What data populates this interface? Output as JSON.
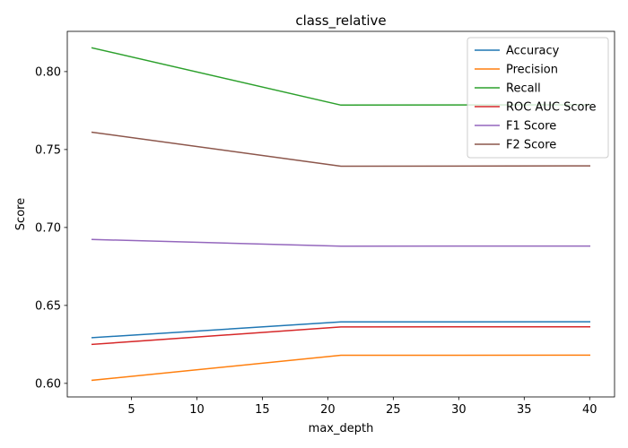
{
  "chart_data": {
    "type": "line",
    "title": "class_relative",
    "xlabel": "max_depth",
    "ylabel": "Score",
    "xlim": [
      0.1,
      41.9
    ],
    "ylim": [
      0.5913,
      0.8258
    ],
    "xticks": [
      5,
      10,
      15,
      20,
      25,
      30,
      35,
      40
    ],
    "yticks": [
      0.6,
      0.65,
      0.7,
      0.75,
      0.8
    ],
    "ytick_format": "0.00",
    "x": [
      2,
      21,
      40
    ],
    "grid": false,
    "legend_position": "top-right",
    "series": [
      {
        "name": "Accuracy",
        "color": "#1f77b4",
        "values": [
          0.6293,
          0.6394,
          0.6395
        ]
      },
      {
        "name": "Precision",
        "color": "#ff7f0e",
        "values": [
          0.602,
          0.618,
          0.6181
        ]
      },
      {
        "name": "Recall",
        "color": "#2ca02c",
        "values": [
          0.8152,
          0.7785,
          0.7787
        ]
      },
      {
        "name": "ROC AUC Score",
        "color": "#d62728",
        "values": [
          0.625,
          0.6362,
          0.6363
        ]
      },
      {
        "name": "F1 Score",
        "color": "#9467bd",
        "values": [
          0.6923,
          0.688,
          0.6881
        ]
      },
      {
        "name": "F2 Score",
        "color": "#8c564b",
        "values": [
          0.7611,
          0.7393,
          0.7395
        ]
      }
    ]
  }
}
